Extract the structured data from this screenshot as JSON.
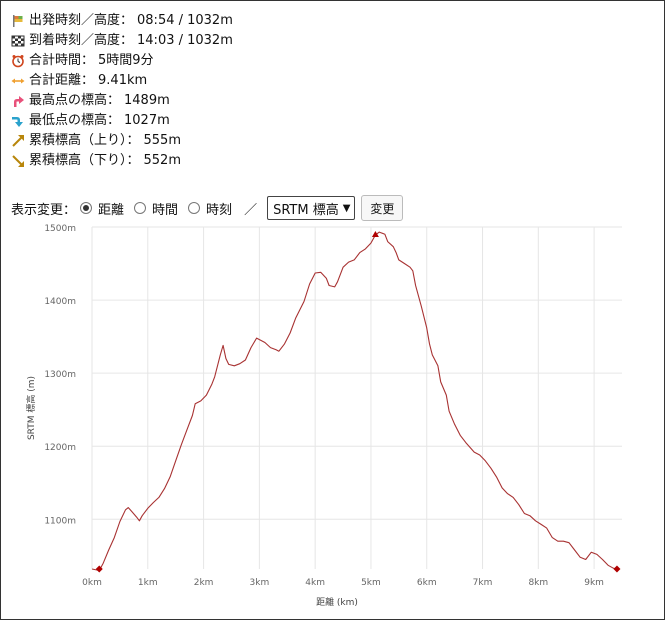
{
  "stats": [
    {
      "icon": "start-flag-icon",
      "label": "出発時刻／高度：",
      "value": "08:54 / 1032m"
    },
    {
      "icon": "goal-flag-icon",
      "label": "到着時刻／高度：",
      "value": "14:03 / 1032m"
    },
    {
      "icon": "alarm-clock-icon",
      "label": "合計時間：",
      "value": "5時間9分"
    },
    {
      "icon": "distance-arrow-icon",
      "label": "合計距離：",
      "value": "9.41km"
    },
    {
      "icon": "up-arrow-icon",
      "label": "最高点の標高：",
      "value": "1489m"
    },
    {
      "icon": "down-arrow-icon",
      "label": "最低点の標高：",
      "value": "1027m"
    },
    {
      "icon": "ascent-arrow-icon",
      "label": "累積標高（上り）：",
      "value": "555m"
    },
    {
      "icon": "descent-arrow-icon",
      "label": "累積標高（下り）：",
      "value": "552m"
    }
  ],
  "controls": {
    "label": "表示変更：",
    "radios": [
      {
        "label": "距離",
        "checked": true
      },
      {
        "label": "時間",
        "checked": false
      },
      {
        "label": "時刻",
        "checked": false
      }
    ],
    "separator": "／",
    "select_value": "SRTM 標高",
    "button_label": "変更"
  },
  "colors": {
    "line": "#a83232",
    "marker": "#b00000",
    "grid": "#e6e6e6",
    "axis_text": "#666666"
  },
  "chart_data": {
    "type": "line",
    "xlabel": "距離 (km)",
    "ylabel": "SRTM 標高 (m)",
    "xlim": [
      0,
      9.5
    ],
    "ylim": [
      1032,
      1500
    ],
    "x_ticks": [
      0,
      1,
      2,
      3,
      4,
      5,
      6,
      7,
      8,
      9
    ],
    "x_tick_labels": [
      "0km",
      "1km",
      "2km",
      "3km",
      "4km",
      "5km",
      "6km",
      "7km",
      "8km",
      "9km"
    ],
    "y_ticks": [
      1100,
      1200,
      1300,
      1400,
      1500
    ],
    "y_tick_labels": [
      "1100m",
      "1200m",
      "1300m",
      "1400m",
      "1500m"
    ],
    "grid": true,
    "series": [
      {
        "points": [
          [
            0,
            1032
          ],
          [
            0.13,
            1030
          ],
          [
            0.2,
            1040
          ],
          [
            0.3,
            1058
          ],
          [
            0.4,
            1075
          ],
          [
            0.5,
            1097
          ],
          [
            0.6,
            1113
          ],
          [
            0.65,
            1116
          ],
          [
            0.72,
            1110
          ],
          [
            0.8,
            1103
          ],
          [
            0.85,
            1098
          ],
          [
            0.9,
            1105
          ],
          [
            1.0,
            1115
          ],
          [
            1.1,
            1123
          ],
          [
            1.2,
            1130
          ],
          [
            1.3,
            1142
          ],
          [
            1.4,
            1158
          ],
          [
            1.5,
            1180
          ],
          [
            1.6,
            1202
          ],
          [
            1.7,
            1222
          ],
          [
            1.8,
            1242
          ],
          [
            1.85,
            1258
          ],
          [
            1.95,
            1262
          ],
          [
            2.05,
            1270
          ],
          [
            2.15,
            1285
          ],
          [
            2.2,
            1295
          ],
          [
            2.3,
            1325
          ],
          [
            2.35,
            1338
          ],
          [
            2.4,
            1320
          ],
          [
            2.45,
            1312
          ],
          [
            2.55,
            1310
          ],
          [
            2.65,
            1313
          ],
          [
            2.75,
            1318
          ],
          [
            2.85,
            1335
          ],
          [
            2.95,
            1348
          ],
          [
            3.1,
            1342
          ],
          [
            3.2,
            1335
          ],
          [
            3.3,
            1332
          ],
          [
            3.35,
            1330
          ],
          [
            3.45,
            1340
          ],
          [
            3.55,
            1355
          ],
          [
            3.65,
            1375
          ],
          [
            3.8,
            1398
          ],
          [
            3.9,
            1422
          ],
          [
            4.0,
            1437
          ],
          [
            4.1,
            1438
          ],
          [
            4.2,
            1430
          ],
          [
            4.25,
            1420
          ],
          [
            4.35,
            1418
          ],
          [
            4.4,
            1425
          ],
          [
            4.5,
            1445
          ],
          [
            4.6,
            1452
          ],
          [
            4.7,
            1455
          ],
          [
            4.8,
            1465
          ],
          [
            4.9,
            1470
          ],
          [
            5.0,
            1478
          ],
          [
            5.08,
            1489
          ],
          [
            5.15,
            1493
          ],
          [
            5.25,
            1490
          ],
          [
            5.3,
            1480
          ],
          [
            5.4,
            1473
          ],
          [
            5.45,
            1465
          ],
          [
            5.5,
            1455
          ],
          [
            5.6,
            1450
          ],
          [
            5.7,
            1445
          ],
          [
            5.75,
            1440
          ],
          [
            5.8,
            1420
          ],
          [
            5.9,
            1392
          ],
          [
            6.0,
            1362
          ],
          [
            6.05,
            1340
          ],
          [
            6.1,
            1325
          ],
          [
            6.2,
            1310
          ],
          [
            6.25,
            1288
          ],
          [
            6.35,
            1270
          ],
          [
            6.4,
            1248
          ],
          [
            6.5,
            1230
          ],
          [
            6.6,
            1215
          ],
          [
            6.7,
            1205
          ],
          [
            6.85,
            1192
          ],
          [
            6.95,
            1188
          ],
          [
            7.05,
            1180
          ],
          [
            7.15,
            1170
          ],
          [
            7.25,
            1158
          ],
          [
            7.35,
            1143
          ],
          [
            7.45,
            1135
          ],
          [
            7.55,
            1130
          ],
          [
            7.65,
            1120
          ],
          [
            7.75,
            1108
          ],
          [
            7.85,
            1105
          ],
          [
            7.95,
            1098
          ],
          [
            8.05,
            1093
          ],
          [
            8.15,
            1088
          ],
          [
            8.25,
            1075
          ],
          [
            8.35,
            1070
          ],
          [
            8.45,
            1070
          ],
          [
            8.55,
            1068
          ],
          [
            8.65,
            1058
          ],
          [
            8.75,
            1048
          ],
          [
            8.85,
            1045
          ],
          [
            8.95,
            1055
          ],
          [
            9.05,
            1052
          ],
          [
            9.15,
            1045
          ],
          [
            9.25,
            1037
          ],
          [
            9.35,
            1033
          ],
          [
            9.41,
            1032
          ]
        ]
      }
    ],
    "markers": [
      {
        "x": 0.13,
        "y": 1032,
        "shape": "diamond"
      },
      {
        "x": 5.08,
        "y": 1489,
        "shape": "triangle"
      },
      {
        "x": 9.41,
        "y": 1032,
        "shape": "diamond"
      }
    ]
  }
}
